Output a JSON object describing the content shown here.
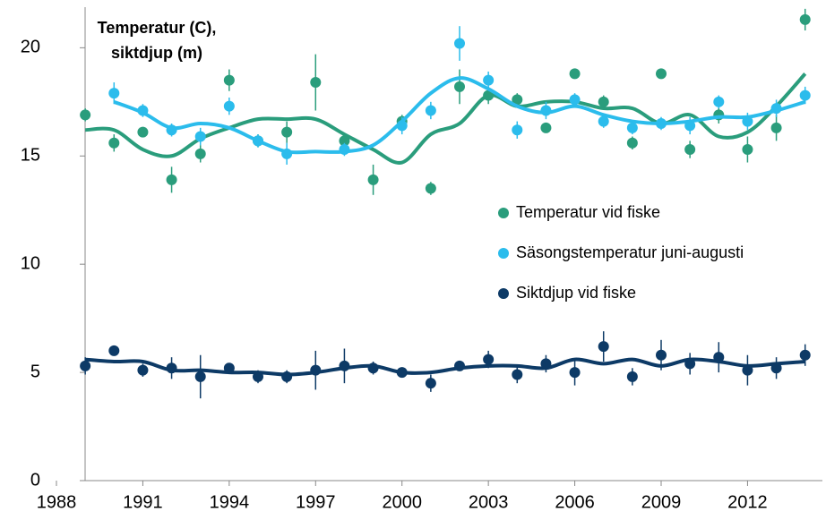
{
  "chart_data": {
    "type": "scatter",
    "y_label": [
      "Temperatur (C),",
      "siktdjup (m)"
    ],
    "x": [
      1989,
      1990,
      1991,
      1992,
      1993,
      1994,
      1995,
      1996,
      1997,
      1998,
      1999,
      2000,
      2001,
      2002,
      2003,
      2004,
      2005,
      2006,
      2007,
      2008,
      2009,
      2010,
      2011,
      2012,
      2013,
      2014
    ],
    "xlim": [
      1988,
      2014.6
    ],
    "xticks": [
      1988,
      1991,
      1994,
      1997,
      2000,
      2003,
      2006,
      2009,
      2012
    ],
    "ylim": [
      0,
      22
    ],
    "yticks": [
      0,
      5,
      10,
      15,
      20
    ],
    "legend": "right",
    "series": [
      {
        "name": "Temperatur vid fiske",
        "color": "#2a9d7c",
        "values": [
          16.9,
          15.6,
          16.1,
          13.9,
          15.1,
          18.5,
          15.7,
          16.1,
          18.4,
          15.7,
          13.9,
          16.6,
          13.5,
          18.2,
          17.8,
          17.6,
          16.3,
          18.8,
          17.5,
          15.6,
          18.8,
          15.3,
          16.9,
          15.3,
          16.3,
          21.3
        ],
        "errors": [
          0.3,
          0.4,
          0.2,
          0.6,
          0.4,
          0.5,
          0.3,
          0.5,
          1.3,
          0.3,
          0.7,
          0.3,
          0.3,
          0.8,
          0.4,
          0.3,
          0.2,
          0.2,
          0.3,
          0.3,
          0.2,
          0.4,
          0.4,
          0.6,
          0.6,
          0.5
        ],
        "trend": [
          16.2,
          16.2,
          15.3,
          15.0,
          15.8,
          16.3,
          16.7,
          16.7,
          16.7,
          16.0,
          15.3,
          14.7,
          16.0,
          16.5,
          17.8,
          17.3,
          17.5,
          17.5,
          17.2,
          17.2,
          16.5,
          16.9,
          15.9,
          16.1,
          17.3,
          18.8
        ]
      },
      {
        "name": "Säsongstemperatur juni-augusti",
        "color": "#2bbcec",
        "values": [
          null,
          17.9,
          17.1,
          16.2,
          15.9,
          17.3,
          15.7,
          15.1,
          null,
          15.3,
          null,
          16.4,
          17.1,
          20.2,
          18.5,
          16.2,
          17.1,
          17.6,
          16.6,
          16.3,
          16.5,
          16.4,
          17.5,
          16.6,
          17.2,
          17.8
        ],
        "errors": [
          null,
          0.5,
          0.3,
          0.3,
          0.4,
          0.4,
          0.3,
          0.5,
          null,
          0.3,
          null,
          0.4,
          0.4,
          0.8,
          0.4,
          0.4,
          0.4,
          0.3,
          0.3,
          0.3,
          0.3,
          0.4,
          0.3,
          0.4,
          0.4,
          0.4
        ],
        "trend": [
          null,
          17.5,
          17.0,
          16.3,
          16.5,
          16.3,
          15.7,
          15.2,
          15.2,
          15.2,
          15.5,
          16.6,
          17.9,
          18.6,
          18.1,
          17.3,
          17.0,
          17.3,
          16.9,
          16.6,
          16.5,
          16.6,
          16.8,
          16.8,
          17.1,
          17.5
        ]
      },
      {
        "name": "Siktdjup vid fiske",
        "color": "#0d3a66",
        "values": [
          5.3,
          6.0,
          5.1,
          5.2,
          4.8,
          5.2,
          4.8,
          4.8,
          5.1,
          5.3,
          5.2,
          5.0,
          4.5,
          5.3,
          5.6,
          4.9,
          5.4,
          5.0,
          6.2,
          4.8,
          5.8,
          5.4,
          5.7,
          5.1,
          5.2,
          5.8
        ],
        "errors": [
          0.4,
          0.1,
          0.3,
          0.5,
          1.0,
          0.2,
          0.3,
          0.3,
          0.9,
          0.8,
          0.3,
          0.2,
          0.4,
          0.2,
          0.4,
          0.4,
          0.4,
          0.6,
          0.7,
          0.4,
          0.7,
          0.5,
          0.7,
          0.7,
          0.5,
          0.5
        ],
        "trend": [
          5.6,
          5.5,
          5.5,
          5.1,
          5.1,
          5.0,
          5.0,
          4.9,
          5.0,
          5.2,
          5.3,
          5.0,
          5.0,
          5.2,
          5.3,
          5.3,
          5.2,
          5.6,
          5.4,
          5.6,
          5.3,
          5.6,
          5.5,
          5.3,
          5.4,
          5.5
        ]
      }
    ]
  }
}
